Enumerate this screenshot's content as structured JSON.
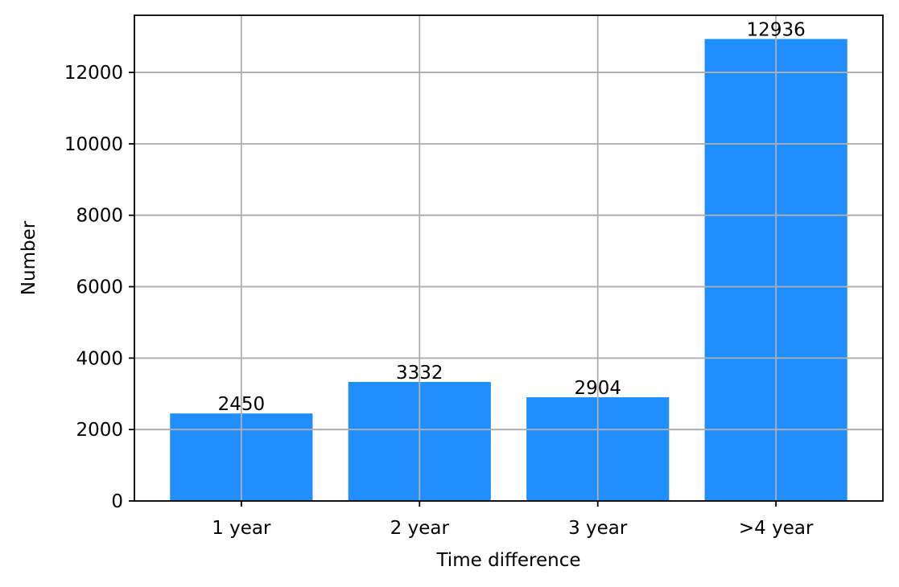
{
  "chart_data": {
    "type": "bar",
    "categories": [
      "1 year",
      "2 year",
      "3 year",
      ">4 year"
    ],
    "values": [
      2450,
      3332,
      2904,
      12936
    ],
    "data_labels": [
      "2450",
      "3332",
      "2904",
      "12936"
    ],
    "title": "",
    "xlabel": "Time difference",
    "ylabel": "Number",
    "ylim": [
      0,
      13600
    ],
    "yticks": [
      0,
      2000,
      4000,
      6000,
      8000,
      10000,
      12000
    ],
    "ytick_labels": [
      "0",
      "2000",
      "4000",
      "6000",
      "8000",
      "10000",
      "12000"
    ],
    "grid": true,
    "legend": "none",
    "bar_color": "#1f8fff",
    "grid_color": "#b0b0b0",
    "axis_color": "#000000"
  }
}
